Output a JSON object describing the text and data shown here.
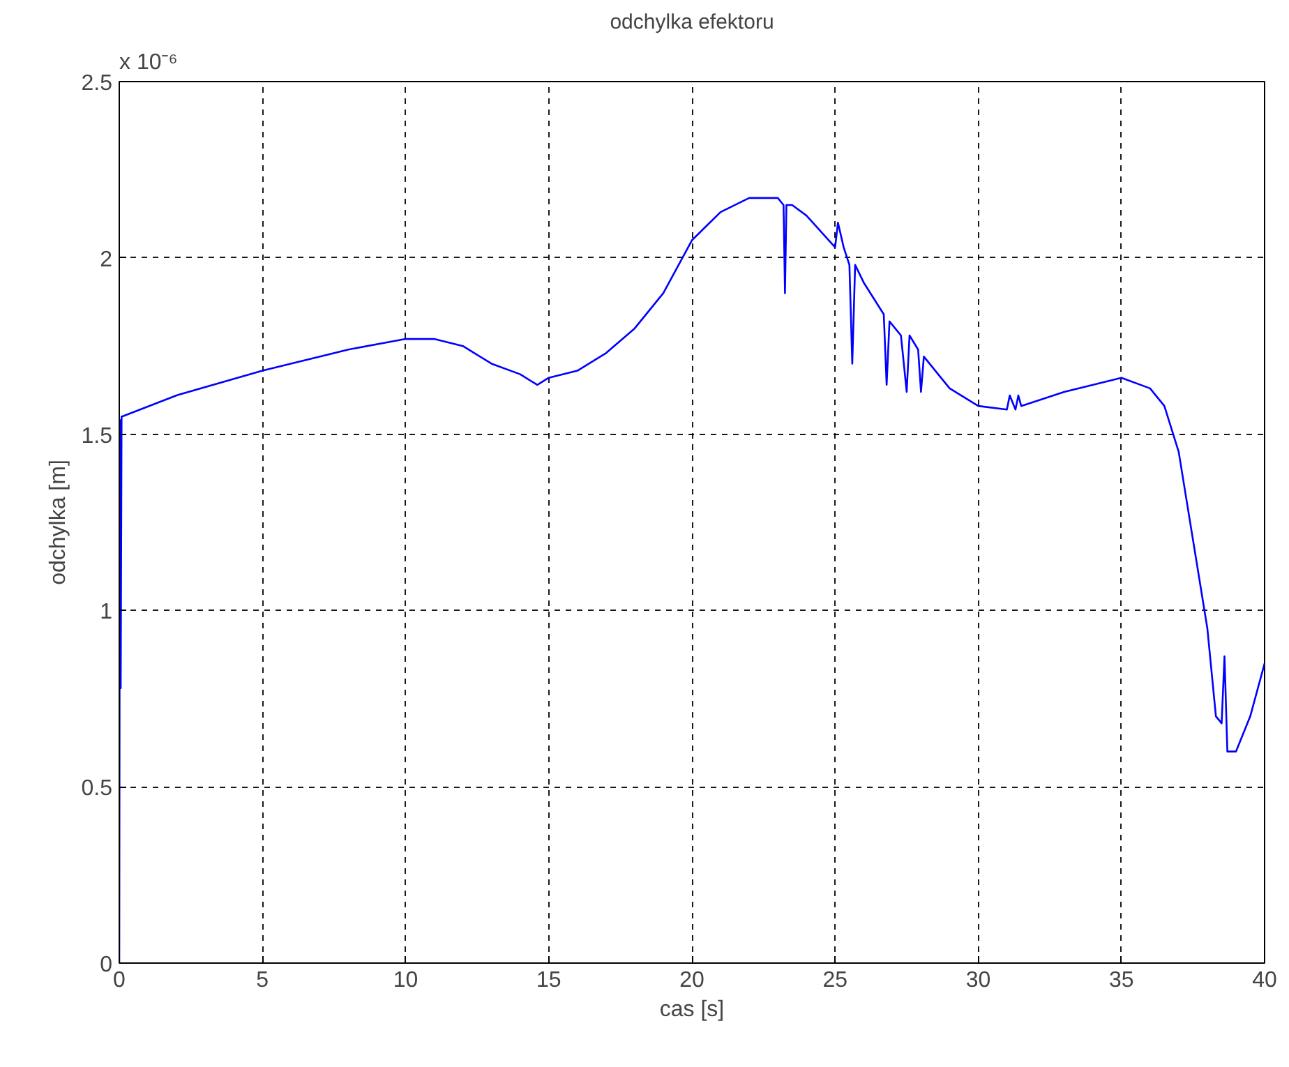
{
  "chart_data": {
    "type": "line",
    "title": "odchylka efektoru",
    "xlabel": "cas [s]",
    "ylabel": "odchylka [m]",
    "annotations": [
      "x 10⁻⁶"
    ],
    "x": [
      0,
      0.02,
      0.05,
      0.08,
      0.1,
      2,
      5,
      8,
      10,
      11,
      12,
      13,
      14,
      14.6,
      15,
      16,
      17,
      18,
      19,
      20,
      21,
      22,
      23,
      23.2,
      23.25,
      23.3,
      23.5,
      24,
      25,
      25.1,
      25.3,
      25.5,
      25.6,
      25.7,
      26,
      26.7,
      26.8,
      26.9,
      27.3,
      27.5,
      27.6,
      27.9,
      28,
      28.1,
      29,
      30,
      31,
      31.1,
      31.3,
      31.4,
      31.5,
      33,
      35,
      36,
      36.5,
      37,
      37.5,
      38,
      38.3,
      38.5,
      38.6,
      38.7,
      39,
      39.5,
      40
    ],
    "series": [
      {
        "color": "#0000ff",
        "values": [
          0,
          1.54,
          0.78,
          1.55,
          1.55,
          1.61,
          1.68,
          1.74,
          1.77,
          1.77,
          1.75,
          1.7,
          1.67,
          1.64,
          1.66,
          1.68,
          1.73,
          1.8,
          1.9,
          2.05,
          2.13,
          2.17,
          2.17,
          2.15,
          1.9,
          2.15,
          2.15,
          2.12,
          2.03,
          2.1,
          2.03,
          1.98,
          1.7,
          1.98,
          1.93,
          1.84,
          1.64,
          1.82,
          1.78,
          1.62,
          1.78,
          1.74,
          1.62,
          1.72,
          1.63,
          1.58,
          1.57,
          1.61,
          1.57,
          1.61,
          1.58,
          1.62,
          1.66,
          1.63,
          1.58,
          1.45,
          1.2,
          0.95,
          0.7,
          0.68,
          0.87,
          0.6,
          0.6,
          0.7,
          0.85
        ]
      }
    ],
    "xlim": [
      0,
      40
    ],
    "ylim": [
      0,
      2.5
    ],
    "xticks": [
      0,
      5,
      10,
      15,
      20,
      25,
      30,
      35,
      40
    ],
    "yticks": [
      0,
      0.5,
      1,
      1.5,
      2,
      2.5
    ],
    "grid": true
  }
}
